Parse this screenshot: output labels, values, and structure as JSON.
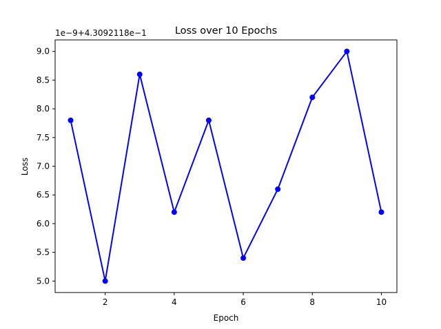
{
  "chart_data": {
    "type": "line",
    "title": "Loss over 10 Epochs",
    "xlabel": "Epoch",
    "ylabel": "Loss",
    "axis_offset_text": "1e−9+4.3092118e−1",
    "x": [
      1,
      2,
      3,
      4,
      5,
      6,
      7,
      8,
      9,
      10
    ],
    "series": [
      {
        "values": [
          7.8,
          5.0,
          8.6,
          6.2,
          7.8,
          5.4,
          6.6,
          8.2,
          9.0,
          6.2
        ],
        "color": "#0000ff",
        "marker": "circle"
      }
    ],
    "xlim": [
      0.55,
      10.45
    ],
    "ylim": [
      4.8,
      9.2
    ],
    "xticks": [
      2,
      4,
      6,
      8,
      10
    ],
    "xtick_labels": [
      "2",
      "4",
      "6",
      "8",
      "10"
    ],
    "yticks": [
      5.0,
      5.5,
      6.0,
      6.5,
      7.0,
      7.5,
      8.0,
      8.5,
      9.0
    ],
    "ytick_labels": [
      "5.0",
      "5.5",
      "6.0",
      "6.5",
      "7.0",
      "7.5",
      "8.0",
      "8.5",
      "9.0"
    ],
    "grid": false,
    "legend": "none"
  }
}
